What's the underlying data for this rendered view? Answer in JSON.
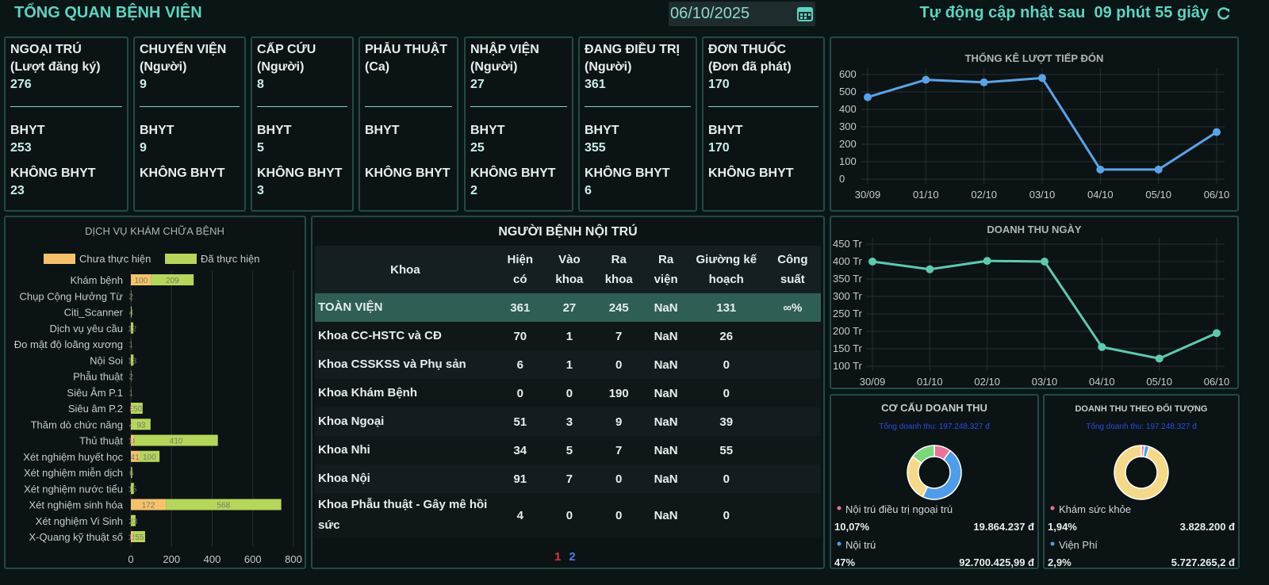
{
  "header": {
    "title": "TỔNG QUAN BỆNH VIỆN",
    "date": "06/10/2025",
    "refresh_label": "Tự động cập nhật sau",
    "countdown": "09 phút 55 giây"
  },
  "cards": {
    "bhyt_label": "BHYT",
    "non_bhyt_label": "KHÔNG BHYT",
    "items": [
      {
        "title": "NGOẠI TRÚ",
        "unit": "(Lượt đăng ký)",
        "total": 276,
        "bhyt": 253,
        "non_bhyt": 23
      },
      {
        "title": "CHUYỂN VIỆN",
        "unit": "(Người)",
        "total": 9,
        "bhyt": 9
      },
      {
        "title": "CẤP CỨU",
        "unit": "(Người)",
        "total": 8,
        "bhyt": 5,
        "non_bhyt": 3
      },
      {
        "title": "PHẪU THUẬT",
        "unit": "(Ca)"
      },
      {
        "title": "NHẬP VIỆN",
        "unit": "(Người)",
        "total": 27,
        "bhyt": 25,
        "non_bhyt": 2
      },
      {
        "title": "ĐANG ĐIỀU TRỊ",
        "unit": "(Người)",
        "total": 361,
        "bhyt": 355,
        "non_bhyt": 6
      },
      {
        "title": "ĐƠN THUỐC",
        "unit": "(Đơn đã phát)",
        "total": 170,
        "bhyt": 170
      }
    ]
  },
  "table": {
    "title": "NGƯỜI BỆNH NỘI TRÚ",
    "headers": [
      "Khoa",
      "Hiện có",
      "Vào khoa",
      "Ra khoa",
      "Ra viện",
      "Giường kế hoạch",
      "Công suất"
    ],
    "rows": [
      [
        "TOÀN VIỆN",
        361,
        27,
        245,
        "NaN",
        131,
        "∞%"
      ],
      [
        "Khoa CC-HSTC và CĐ",
        70,
        1,
        7,
        "NaN",
        26
      ],
      [
        "Khoa CSSKSS và Phụ sản",
        6,
        1,
        0,
        "NaN",
        0
      ],
      [
        "Khoa Khám Bệnh",
        0,
        0,
        190,
        "NaN",
        0
      ],
      [
        "Khoa Ngoại",
        51,
        3,
        9,
        "NaN",
        39
      ],
      [
        "Khoa Nhi",
        34,
        5,
        7,
        "NaN",
        55
      ],
      [
        "Khoa Nội",
        91,
        7,
        0,
        "NaN",
        0
      ],
      [
        "Khoa Phẫu thuật - Gây mê hồi sức",
        4,
        0,
        0,
        "NaN",
        0
      ]
    ],
    "pages": [
      "1",
      "2"
    ]
  },
  "chart_data": [
    {
      "type": "line",
      "title": "THỐNG KÊ LƯỢT TIẾP ĐÓN",
      "categories": [
        "30/09",
        "01/10",
        "02/10",
        "03/10",
        "04/10",
        "05/10",
        "06/10"
      ],
      "values": [
        470,
        570,
        555,
        580,
        55,
        55,
        270
      ],
      "color": "#5ba3e8",
      "ylim": [
        0,
        600
      ],
      "yticks": [
        0,
        100,
        200,
        300,
        400,
        500,
        600
      ],
      "grid": true
    },
    {
      "type": "line",
      "title": "DOANH THU NGÀY",
      "categories": [
        "30/09",
        "01/10",
        "02/10",
        "03/10",
        "04/10",
        "05/10",
        "06/10"
      ],
      "values": [
        400,
        378,
        402,
        400,
        155,
        122,
        195
      ],
      "color": "#5fc9b0",
      "ylim": [
        100,
        450
      ],
      "yticks": [
        {
          "value": 100,
          "label": "100 Tr"
        },
        {
          "value": 150,
          "label": "150 Tr"
        },
        {
          "value": 200,
          "label": "200 Tr"
        },
        {
          "value": 250,
          "label": "250 Tr"
        },
        {
          "value": 300,
          "label": "300 Tr"
        },
        {
          "value": 350,
          "label": "350 Tr"
        },
        {
          "value": 400,
          "label": "400 Tr"
        },
        {
          "value": 450,
          "label": "450 Tr"
        }
      ],
      "grid": true
    },
    {
      "type": "hbar",
      "title": "DỊCH VỤ KHÁM CHỮA BỆNH",
      "categories": [
        "Khám bệnh",
        "Chụp Cộng Hưởng Từ",
        "Citi_Scanner",
        "Dịch vụ yêu cầu",
        "Đo mật độ loãng xương",
        "Nội Soi",
        "Phẫu thuật",
        "Siêu Âm P.1",
        "Siêu âm P.2",
        "Thăm dò chức năng",
        "Thủ thuật",
        "Xét nghiệm huyết học",
        "Xét nghiệm miễn dịch",
        "Xét nghiệm nước tiểu",
        "Xét nghiệm sinh hóa",
        "Xét nghiệm Vi Sinh",
        "X-Quang kỹ thuật số"
      ],
      "series": [
        {
          "name": "Chưa thực hiện",
          "color": "#f5c26b",
          "values": [
            100,
            0,
            0,
            0,
            0,
            0,
            0,
            0,
            8,
            4,
            18,
            41,
            0,
            0,
            172,
            0,
            15
          ]
        },
        {
          "name": "Đã thực hiện",
          "color": "#b5d65a",
          "values": [
            209,
            2,
            4,
            12,
            1,
            13,
            2,
            1,
            50,
            93,
            410,
            100,
            6,
            15,
            568,
            23,
            55
          ]
        }
      ],
      "xlim": [
        0,
        800
      ],
      "xticks": [
        0,
        200,
        400,
        600,
        800
      ],
      "grid": true
    },
    {
      "type": "pie",
      "title": "CƠ CẤU DOANH THU",
      "subtitle": "Tổng doanh thu: 197.248.327 đ",
      "slices": [
        {
          "name": "Nội trú điều trị ngoại trú",
          "color": "#e8739a",
          "value": 10.07,
          "value_label": "10,07%",
          "amount": "19.864.237 đ"
        },
        {
          "name": "Nội trú",
          "color": "#4f9de8",
          "value": 47,
          "value_label": "47%",
          "amount": "92.700.425,99 đ"
        },
        {
          "color": "#f5d98a",
          "value": 28
        },
        {
          "color": "#7cd67c",
          "value": 14.93
        }
      ]
    },
    {
      "type": "pie",
      "title": "DOANH THU THEO ĐỐI TƯỢNG",
      "subtitle": "Tổng doanh thu: 197.248.327 đ",
      "slices": [
        {
          "name": "Khám sức khỏe",
          "color": "#e8739a",
          "value": 1.94,
          "value_label": "1,94%",
          "amount": "3.828.200 đ"
        },
        {
          "name": "Viện Phí",
          "color": "#4f9de8",
          "value": 2.9,
          "value_label": "2,9%",
          "amount": "5.727.265,2 đ"
        },
        {
          "color": "#f5d98a",
          "value": 95.16
        }
      ]
    }
  ]
}
